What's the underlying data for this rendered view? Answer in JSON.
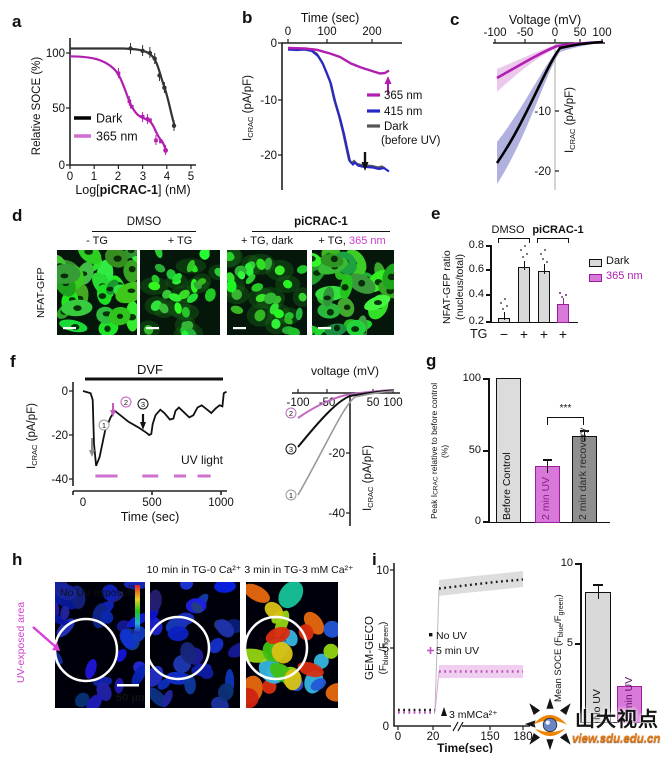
{
  "colors": {
    "magenta": "#b11fb1",
    "magenta_light": "#cf6fcf",
    "magenta_bar": "#d878d8",
    "blue": "#2828c8",
    "gray_dark": "#555555",
    "bar_gray": "#d9d9d9",
    "bar_darkgray": "#8f8f8f"
  },
  "panels": {
    "a": {
      "label": "a",
      "ylabel": "Relative SOCE (%)",
      "xlabel": {
        "pre": "Log[",
        "bold": "piCRAC-1",
        "post": "] (nM)"
      },
      "yticks": [
        "100",
        "50",
        "0"
      ],
      "xticks": [
        "0",
        "1",
        "2",
        "3",
        "4",
        "5"
      ],
      "legend": {
        "dark": "Dark",
        "uv": "365 nm"
      }
    },
    "b": {
      "label": "b",
      "xlabel": "Time (sec)",
      "xticks": [
        "0",
        "100",
        "200"
      ],
      "yticks": [
        "0",
        "-10",
        "-20"
      ],
      "ylabel": {
        "pre": "I",
        "sub": "CRAC",
        "post": " (pA/pF)"
      },
      "legend": {
        "l365": "365 nm",
        "l415": "415 nm",
        "dark": "Dark",
        "dark2": "(before UV)"
      }
    },
    "c": {
      "label": "c",
      "xlabel": "Voltage (mV)",
      "xticks": [
        "-100",
        "-50",
        "0",
        "50",
        "100"
      ],
      "yticks": [
        "-10",
        "-20"
      ],
      "ylabel": {
        "pre": "I",
        "sub": "CRAC",
        "post": " (pA/pF)"
      }
    },
    "d": {
      "label": "d",
      "row_label": "NFAT-GFP",
      "group1": "DMSO",
      "group2": "piCRAC-1",
      "col1": "- TG",
      "col2": "+ TG",
      "col3": "+ TG, dark",
      "col4_pre": "+ TG, ",
      "col4_uv": "365 nm"
    },
    "e": {
      "label": "e",
      "ylabel1": "NFAT-GFP ratio",
      "ylabel2": "(nucleus/total)",
      "yticks": [
        "0.8",
        "0.6",
        "0.4",
        "0.2"
      ],
      "group1": "DMSO",
      "group2": "piCRAC-1",
      "x_title": "TG",
      "xsigns": [
        "−",
        "+",
        "+",
        "+"
      ],
      "legend": {
        "dark": "Dark",
        "uv": "365 nm"
      }
    },
    "f": {
      "label": "f",
      "left": {
        "ylabel": {
          "pre": "I",
          "sub": "CRAC",
          "post": " (pA/pF)"
        },
        "yticks": [
          "0",
          "-20",
          "-40"
        ],
        "xticks": [
          "0",
          "500",
          "1000"
        ],
        "xlabel": "Time (sec)",
        "dvf": "DVF",
        "uv_light": "UV light",
        "marks": [
          "1",
          "2",
          "3"
        ]
      },
      "right": {
        "xlabel": "voltage (mV)",
        "xticks": [
          "-100",
          "-50",
          "50",
          "100"
        ],
        "yticks": [
          "-20",
          "-40"
        ],
        "ylabel": {
          "pre": "I",
          "sub": "CRAC",
          "post": " (pA/pF)"
        },
        "marks": [
          "2",
          "3",
          "1"
        ]
      }
    },
    "g": {
      "label": "g",
      "ylabel": {
        "pre": "Peak I",
        "sub": "CRAC",
        "post": " relative to before control (%)"
      },
      "yticks": [
        "100",
        "50",
        "0"
      ],
      "sig": "***",
      "bars": [
        "Before Control",
        "2 min UV",
        "2 min dark recovery"
      ]
    },
    "h": {
      "label": "h",
      "area_label": "UV-exposed area",
      "img1_caption": "No UV exposure",
      "title1": "10 min in TG-0 Ca²⁺",
      "title2": "3 min in TG-3 mM Ca²⁺",
      "colorbar": [
        "10",
        "5",
        "0"
      ],
      "scalebar": "50 μm"
    },
    "i": {
      "label": "i",
      "left": {
        "ylabel1": "GEM-GECO",
        "ylabel2": {
          "pre": "(F",
          "sub1": "blue",
          "mid": "/F",
          "sub2": "green",
          "post": ")"
        },
        "yticks": [
          "10",
          "5",
          "0"
        ],
        "xticks": [
          "0",
          "20",
          "150",
          "180"
        ],
        "xlabel": "Time(sec)",
        "annotation": "3 mMCa²⁺",
        "legend": {
          "no_uv": "No UV",
          "uv": "5 min UV"
        }
      },
      "right": {
        "ylabel": {
          "pre": "Mean SOCE (F",
          "sub1": "blue",
          "mid": "/F",
          "sub2": "green",
          "post": ")"
        },
        "yticks": [
          "10",
          "5"
        ],
        "bars": [
          "No UV",
          "5 min UV"
        ]
      }
    }
  },
  "watermark": {
    "title": "山大视点",
    "url": "view.sdu.edu.cn"
  },
  "chart_data": [
    {
      "panel": "a",
      "type": "scatter",
      "xlabel": "Log[piCRAC-1] (nM)",
      "ylabel": "Relative SOCE (%)",
      "xlim": [
        0,
        5
      ],
      "ylim": [
        0,
        110
      ],
      "grid": false,
      "series": [
        {
          "name": "Dark",
          "color": "#333333",
          "x": [
            2.5,
            3.0,
            3.3,
            3.5,
            3.7,
            3.9,
            4.3
          ],
          "y": [
            104,
            102,
            100,
            95,
            80,
            69,
            35
          ]
        },
        {
          "name": "365 nm",
          "color": "#b11fb1",
          "x": [
            2.0,
            2.45,
            2.55,
            3.0,
            3.2,
            3.3,
            3.55,
            3.75,
            3.95
          ],
          "y": [
            82,
            57,
            52,
            43,
            41,
            40,
            22,
            21,
            13
          ]
        }
      ]
    },
    {
      "panel": "b",
      "type": "line",
      "xlabel": "Time (sec)",
      "ylabel": "ICRAC (pA/pF)",
      "xlim": [
        0,
        250
      ],
      "ylim": [
        -25,
        0
      ],
      "series": [
        {
          "name": "365 nm",
          "color": "#b11fb1",
          "x": [
            0,
            60,
            100,
            150,
            200,
            225,
            240
          ],
          "y": [
            -1,
            -1.2,
            -2,
            -3.7,
            -5,
            -5.4,
            -5
          ]
        },
        {
          "name": "415 nm",
          "color": "#2828c8",
          "x": [
            0,
            60,
            80,
            100,
            120,
            140,
            160,
            200,
            240
          ],
          "y": [
            -1,
            -1.5,
            -5,
            -10,
            -16,
            -21,
            -22,
            -22.5,
            -23
          ]
        },
        {
          "name": "Dark (before UV)",
          "color": "#555555",
          "x": [
            0,
            60,
            80,
            100,
            120,
            140,
            160,
            200,
            230
          ],
          "y": [
            -1,
            -1.4,
            -5,
            -10,
            -16,
            -21,
            -21.7,
            -22,
            -22.4
          ]
        }
      ]
    },
    {
      "panel": "c",
      "type": "line",
      "xlabel": "Voltage (mV)",
      "ylabel": "ICRAC (pA/pF)",
      "xlim": [
        -100,
        100
      ],
      "ylim": [
        -22,
        2
      ],
      "shaded_error": true,
      "series": [
        {
          "name": "365 nm",
          "color": "#b11fb1",
          "x": [
            -100,
            -50,
            0,
            50,
            100
          ],
          "y": [
            -5.8,
            -2.6,
            -0.6,
            0.2,
            0.5
          ]
        },
        {
          "name": "Dark",
          "color": "#000000",
          "x": [
            -100,
            -50,
            0,
            50,
            100
          ],
          "y": [
            -19.5,
            -9.5,
            -1.5,
            0.2,
            0.5
          ]
        }
      ]
    },
    {
      "panel": "e",
      "type": "bar",
      "ylabel": "NFAT-GFP ratio (nucleus/total)",
      "ylim": [
        0.2,
        0.8
      ],
      "categories": [
        "DMSO −TG",
        "DMSO +TG",
        "piCRAC-1 +TG dark",
        "piCRAC-1 +TG 365 nm"
      ],
      "values": [
        0.24,
        0.66,
        0.63,
        0.36
      ],
      "colors": [
        "#d9d9d9",
        "#d9d9d9",
        "#d9d9d9",
        "#d878d8"
      ],
      "legend": [
        "Dark",
        "365 nm"
      ]
    },
    {
      "panel": "f-left",
      "type": "line",
      "xlabel": "Time (sec)",
      "ylabel": "ICRAC (pA/pF)",
      "xlim": [
        0,
        1100
      ],
      "ylim": [
        -40,
        0
      ],
      "annotations": [
        "DVF",
        "UV light",
        "1",
        "2",
        "3"
      ],
      "uv_pulses_sec": [
        [
          90,
          250
        ],
        [
          430,
          545
        ],
        [
          660,
          745
        ],
        [
          830,
          925
        ]
      ],
      "series": [
        {
          "name": "ICRAC",
          "color": "#111111",
          "x": [
            0,
            55,
            70,
            80,
            95,
            120,
            160,
            200,
            230,
            270,
            330,
            400,
            460,
            480,
            495,
            505,
            525,
            560,
            590,
            630,
            655,
            670,
            695,
            720,
            770,
            800,
            830,
            860,
            890,
            930,
            960,
            990,
            1010,
            1020,
            1040
          ],
          "y": [
            0,
            -1,
            -4,
            -24,
            -34,
            -30,
            -18,
            -12,
            -9,
            -11,
            -14,
            -16.5,
            -19,
            -20,
            -19.5,
            -15,
            -11,
            -8.5,
            -10,
            -13,
            -12.5,
            -9,
            -7.5,
            -9,
            -12,
            -11,
            -7.5,
            -6.5,
            -8,
            -10,
            -8,
            -6.5,
            -7,
            -1,
            -0.3
          ]
        }
      ]
    },
    {
      "panel": "f-right",
      "type": "line",
      "xlabel": "voltage (mV)",
      "ylabel": "ICRAC (pA/pF)",
      "xlim": [
        -100,
        100
      ],
      "ylim": [
        -40,
        5
      ],
      "series": [
        {
          "name": "2",
          "color": "#c06ac0",
          "x": [
            -100,
            -50,
            0,
            50,
            100
          ],
          "y": [
            -8.3,
            -3.5,
            -0.8,
            0.5,
            1
          ]
        },
        {
          "name": "3",
          "color": "#111111",
          "x": [
            -100,
            -50,
            0,
            50,
            100
          ],
          "y": [
            -18,
            -7.5,
            -1.2,
            0.5,
            1
          ]
        },
        {
          "name": "1",
          "color": "#999999",
          "x": [
            -100,
            -50,
            0,
            50,
            100
          ],
          "y": [
            -34,
            -16,
            -2,
            0.5,
            1
          ]
        }
      ]
    },
    {
      "panel": "g",
      "type": "bar",
      "ylabel": "Peak ICRAC relative to before control (%)",
      "ylim": [
        0,
        100
      ],
      "categories": [
        "Before Control",
        "2 min UV",
        "2 min dark recovery"
      ],
      "values": [
        100,
        39,
        60
      ],
      "errors": [
        0,
        4,
        3
      ],
      "colors": [
        "#dcdcdc",
        "#d878d8",
        "#8f8f8f"
      ],
      "significance": "***"
    },
    {
      "panel": "i-left",
      "type": "line",
      "xlabel": "Time(sec)",
      "ylabel": "GEM-GECO (Fblue/Fgreen)",
      "ylim": [
        0,
        10
      ],
      "x_break": [
        30,
        140
      ],
      "series": [
        {
          "name": "No UV",
          "color": "#222222",
          "x": [
            0,
            10,
            20,
            25,
            30,
            150,
            160,
            170,
            180
          ],
          "y": [
            1,
            1,
            1,
            8.6,
            8.8,
            9.2,
            9.3,
            9.4,
            9.4
          ]
        },
        {
          "name": "5 min UV",
          "color": "#c06ac0",
          "x": [
            0,
            10,
            20,
            25,
            30,
            150,
            160,
            170,
            180
          ],
          "y": [
            1,
            1,
            1,
            3.4,
            3.5,
            3.5,
            3.5,
            3.5,
            3.5
          ]
        }
      ],
      "annotation": {
        "text": "3 mMCa²⁺",
        "x": 23
      }
    },
    {
      "panel": "i-right",
      "type": "bar",
      "ylabel": "Mean SOCE (Fblue/Fgreen)",
      "ylim": [
        0,
        10
      ],
      "categories": [
        "No UV",
        "5 min UV"
      ],
      "values": [
        8.2,
        2.3
      ],
      "errors": [
        0.5,
        0.2
      ],
      "colors": [
        "#d9d9d9",
        "#d878d8"
      ]
    }
  ]
}
